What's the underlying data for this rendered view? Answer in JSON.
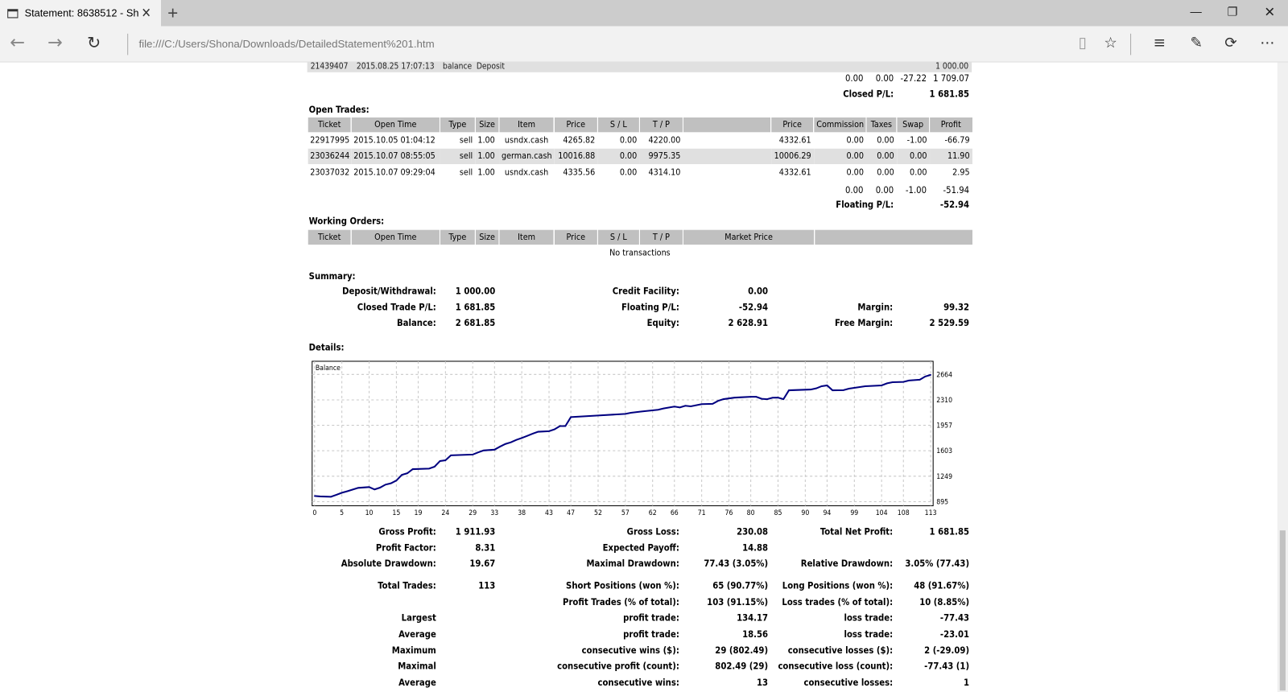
{
  "browser": {
    "tab_title": "Statement: 8638512 - Sh",
    "url": "file:///C:/Users/Shona/Downloads/DetailedStatement%201.htm",
    "icons": [
      "tab-page-icon",
      "close-tab-icon",
      "new-tab-icon",
      "minimize-icon",
      "restore-icon",
      "close-window-icon",
      "back-icon",
      "forward-icon",
      "refresh-icon",
      "reading-view-icon",
      "favorite-star-icon",
      "hub-icon",
      "web-note-icon",
      "share-icon",
      "more-icon"
    ]
  },
  "closed_section": {
    "partial_row": [
      "21439407",
      "2015.08.25 17:07:13",
      "balance",
      "Deposit",
      "1 000.00"
    ],
    "totals": {
      "commission": "0.00",
      "taxes": "0.00",
      "swap": "-27.22",
      "profit": "1 709.07"
    },
    "closed_pl_label": "Closed P/L:",
    "closed_pl_value": "1 681.85"
  },
  "open_trades": {
    "title": "Open Trades:",
    "headers": [
      "Ticket",
      "Open Time",
      "Type",
      "Size",
      "Item",
      "Price",
      "S / L",
      "T / P",
      "",
      "Price",
      "Commission",
      "Taxes",
      "Swap",
      "Profit"
    ],
    "rows": [
      [
        "22917995",
        "2015.10.05 01:04:12",
        "sell",
        "1.00",
        "usndx.cash",
        "4265.82",
        "0.00",
        "4220.00",
        "",
        "4332.61",
        "0.00",
        "0.00",
        "-1.00",
        "-66.79"
      ],
      [
        "23036244",
        "2015.10.07 08:55:05",
        "sell",
        "1.00",
        "german.cash",
        "10016.88",
        "0.00",
        "9975.35",
        "",
        "10006.29",
        "0.00",
        "0.00",
        "0.00",
        "11.90"
      ],
      [
        "23037032",
        "2015.10.07 09:29:04",
        "sell",
        "1.00",
        "usndx.cash",
        "4335.56",
        "0.00",
        "4314.10",
        "",
        "4332.61",
        "0.00",
        "0.00",
        "0.00",
        "2.95"
      ]
    ],
    "totals": {
      "commission": "0.00",
      "taxes": "0.00",
      "swap": "-1.00",
      "profit": "-51.94"
    },
    "floating_pl_label": "Floating P/L:",
    "floating_pl_value": "-52.94"
  },
  "working_orders": {
    "title": "Working Orders:",
    "headers": [
      "Ticket",
      "Open Time",
      "Type",
      "Size",
      "Item",
      "Price",
      "S / L",
      "T / P",
      "Market Price",
      ""
    ],
    "empty": "No transactions"
  },
  "summary": {
    "title": "Summary:",
    "rows": [
      [
        "Deposit/Withdrawal:",
        "1 000.00",
        "Credit Facility:",
        "0.00",
        "",
        ""
      ],
      [
        "Closed Trade P/L:",
        "1 681.85",
        "Floating P/L:",
        "-52.94",
        "Margin:",
        "99.32"
      ],
      [
        "Balance:",
        "2 681.85",
        "Equity:",
        "2 628.91",
        "Free Margin:",
        "2 529.59"
      ]
    ]
  },
  "details": {
    "title": "Details:",
    "rows": [
      [
        "Gross Profit:",
        "1 911.93",
        "Gross Loss:",
        "230.08",
        "Total Net Profit:",
        "1 681.85"
      ],
      [
        "Profit Factor:",
        "8.31",
        "Expected Payoff:",
        "14.88",
        "",
        ""
      ],
      [
        "Absolute Drawdown:",
        "19.67",
        "Maximal Drawdown:",
        "77.43 (3.05%)",
        "Relative Drawdown:",
        "3.05% (77.43)"
      ]
    ],
    "rows2": [
      [
        "Total Trades:",
        "113",
        "Short Positions (won %):",
        "65 (90.77%)",
        "Long Positions (won %):",
        "48 (91.67%)"
      ],
      [
        "",
        "",
        "Profit Trades (% of total):",
        "103 (91.15%)",
        "Loss trades (% of total):",
        "10 (8.85%)"
      ],
      [
        "Largest",
        "",
        "profit trade:",
        "134.17",
        "loss trade:",
        "-77.43"
      ],
      [
        "Average",
        "",
        "profit trade:",
        "18.56",
        "loss trade:",
        "-23.01"
      ],
      [
        "Maximum",
        "",
        "consecutive wins ($):",
        "29 (802.49)",
        "consecutive losses ($):",
        "2 (-29.09)"
      ],
      [
        "Maximal",
        "",
        "consecutive profit (count):",
        "802.49 (29)",
        "consecutive loss (count):",
        "-77.43 (1)"
      ],
      [
        "Average",
        "",
        "consecutive wins:",
        "13",
        "consecutive losses:",
        "1"
      ]
    ]
  },
  "chart_data": {
    "type": "line",
    "legend": "Balance",
    "line_color": "#000080",
    "grid": true,
    "xlim": [
      0,
      113
    ],
    "ylim": [
      895,
      2664
    ],
    "x_ticks": [
      0,
      5,
      10,
      15,
      19,
      24,
      29,
      33,
      38,
      43,
      47,
      52,
      57,
      62,
      66,
      71,
      76,
      80,
      85,
      90,
      94,
      99,
      104,
      108,
      113
    ],
    "y_ticks": [
      895,
      1249,
      1603,
      1957,
      2310,
      2664
    ],
    "points": [
      [
        0,
        974
      ],
      [
        1,
        968
      ],
      [
        3,
        963
      ],
      [
        4,
        990
      ],
      [
        5,
        1019
      ],
      [
        6,
        1040
      ],
      [
        8,
        1087
      ],
      [
        10,
        1098
      ],
      [
        11,
        1065
      ],
      [
        12,
        1090
      ],
      [
        13,
        1132
      ],
      [
        14,
        1150
      ],
      [
        15,
        1189
      ],
      [
        16,
        1268
      ],
      [
        17,
        1290
      ],
      [
        18,
        1347
      ],
      [
        21,
        1355
      ],
      [
        22,
        1381
      ],
      [
        23,
        1460
      ],
      [
        24,
        1470
      ],
      [
        25,
        1539
      ],
      [
        29,
        1550
      ],
      [
        30,
        1580
      ],
      [
        31,
        1607
      ],
      [
        33,
        1618
      ],
      [
        34,
        1660
      ],
      [
        35,
        1697
      ],
      [
        36,
        1720
      ],
      [
        37,
        1754
      ],
      [
        38,
        1780
      ],
      [
        39,
        1810
      ],
      [
        40,
        1840
      ],
      [
        41,
        1867
      ],
      [
        43,
        1875
      ],
      [
        44,
        1900
      ],
      [
        45,
        1946
      ],
      [
        46,
        1946
      ],
      [
        47,
        2070
      ],
      [
        52,
        2093
      ],
      [
        57,
        2115
      ],
      [
        58,
        2130
      ],
      [
        60,
        2149
      ],
      [
        63,
        2172
      ],
      [
        64,
        2190
      ],
      [
        66,
        2217
      ],
      [
        67,
        2205
      ],
      [
        68,
        2228
      ],
      [
        69,
        2220
      ],
      [
        71,
        2251
      ],
      [
        73,
        2255
      ],
      [
        74,
        2296
      ],
      [
        75,
        2320
      ],
      [
        77,
        2341
      ],
      [
        78,
        2345
      ],
      [
        80,
        2353
      ],
      [
        81,
        2353
      ],
      [
        82,
        2325
      ],
      [
        83,
        2319
      ],
      [
        84,
        2340
      ],
      [
        85,
        2341
      ],
      [
        86,
        2320
      ],
      [
        87,
        2443
      ],
      [
        91,
        2454
      ],
      [
        92,
        2470
      ],
      [
        93,
        2500
      ],
      [
        94,
        2511
      ],
      [
        95,
        2443
      ],
      [
        97,
        2445
      ],
      [
        98,
        2466
      ],
      [
        101,
        2500
      ],
      [
        104,
        2511
      ],
      [
        105,
        2540
      ],
      [
        106,
        2556
      ],
      [
        108,
        2560
      ],
      [
        109,
        2579
      ],
      [
        111,
        2590
      ],
      [
        112,
        2635
      ],
      [
        113,
        2658
      ]
    ]
  }
}
